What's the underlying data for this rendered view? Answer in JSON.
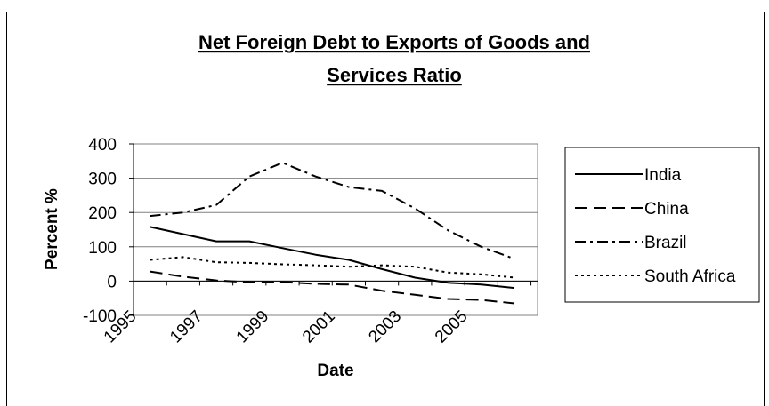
{
  "chart_data": {
    "type": "line",
    "title_lines": [
      "Net Foreign Debt to Exports of Goods and",
      "Services Ratio"
    ],
    "xlabel": "Date",
    "ylabel": "Percent %",
    "ylim": [
      -100,
      400
    ],
    "yticks": [
      400,
      300,
      200,
      100,
      0,
      -100
    ],
    "xlim": [
      1995,
      2007.2
    ],
    "xtick_labels": [
      "1995",
      "1997",
      "1999",
      "2001",
      "2003",
      "2005"
    ],
    "xtick_values": [
      1995,
      1997,
      1999,
      2001,
      2003,
      2005
    ],
    "grid": "horizontal",
    "legend_position": "right",
    "x": [
      1995.5,
      1996.5,
      1997.5,
      1998.5,
      1999.5,
      2000.5,
      2001.5,
      2002.5,
      2003.5,
      2004.5,
      2005.5,
      2006.5
    ],
    "series": [
      {
        "name": "India",
        "style": "solid",
        "values": [
          158,
          137,
          116,
          116,
          96,
          77,
          62,
          35,
          10,
          -5,
          -10,
          -20
        ]
      },
      {
        "name": "China",
        "style": "dash",
        "values": [
          28,
          13,
          2,
          -3,
          -3,
          -8,
          -10,
          -28,
          -40,
          -52,
          -55,
          -65
        ]
      },
      {
        "name": "Brazil",
        "style": "dashdot",
        "values": [
          190,
          200,
          222,
          305,
          345,
          305,
          274,
          263,
          212,
          148,
          100,
          65
        ]
      },
      {
        "name": "South Africa",
        "style": "dot",
        "values": [
          62,
          70,
          55,
          53,
          49,
          46,
          42,
          46,
          42,
          25,
          20,
          10
        ]
      }
    ]
  }
}
